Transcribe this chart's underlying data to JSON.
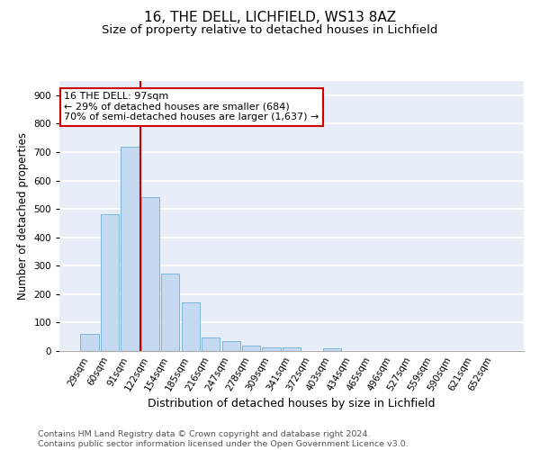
{
  "title1": "16, THE DELL, LICHFIELD, WS13 8AZ",
  "title2": "Size of property relative to detached houses in Lichfield",
  "xlabel": "Distribution of detached houses by size in Lichfield",
  "ylabel": "Number of detached properties",
  "categories": [
    "29sqm",
    "60sqm",
    "91sqm",
    "122sqm",
    "154sqm",
    "185sqm",
    "216sqm",
    "247sqm",
    "278sqm",
    "309sqm",
    "341sqm",
    "372sqm",
    "403sqm",
    "434sqm",
    "465sqm",
    "496sqm",
    "527sqm",
    "559sqm",
    "590sqm",
    "621sqm",
    "652sqm"
  ],
  "values": [
    60,
    482,
    720,
    543,
    272,
    172,
    47,
    35,
    18,
    14,
    14,
    0,
    10,
    0,
    0,
    0,
    0,
    0,
    0,
    0,
    0
  ],
  "bar_color": "#c5d9f1",
  "bar_edge_color": "#6baed6",
  "vline_x_index": 2.5,
  "vline_color": "#cc0000",
  "annotation_text": "16 THE DELL: 97sqm\n← 29% of detached houses are smaller (684)\n70% of semi-detached houses are larger (1,637) →",
  "annotation_box_color": "#ffffff",
  "annotation_box_edge": "#cc0000",
  "ylim": [
    0,
    950
  ],
  "yticks": [
    0,
    100,
    200,
    300,
    400,
    500,
    600,
    700,
    800,
    900
  ],
  "footer": "Contains HM Land Registry data © Crown copyright and database right 2024.\nContains public sector information licensed under the Open Government Licence v3.0.",
  "bg_color": "#e8eef8",
  "grid_color": "#ffffff",
  "title1_fontsize": 11,
  "title2_fontsize": 9.5,
  "xlabel_fontsize": 9,
  "ylabel_fontsize": 8.5,
  "footer_fontsize": 6.8,
  "tick_fontsize": 7.5,
  "ann_fontsize": 8
}
